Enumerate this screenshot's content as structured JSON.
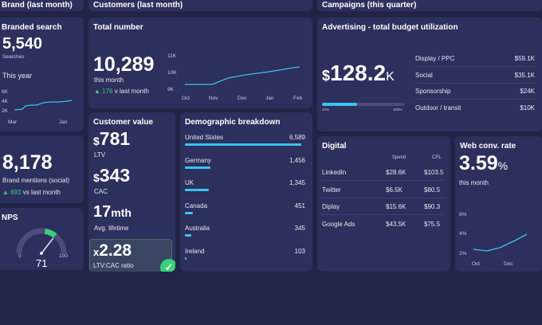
{
  "headers": {
    "brand": "Brand (last month)",
    "customers": "Customers (last month)",
    "campaigns": "Campaigns (this quarter)"
  },
  "branded_search": {
    "title": "Branded search",
    "value": "5,540",
    "label": "Searches",
    "this_year": "This year",
    "y_ticks": [
      "6K",
      "4K",
      "2K"
    ],
    "x_ticks": [
      "Mar",
      "Jan"
    ]
  },
  "brand_mentions": {
    "value": "8,178",
    "label": "Brand mentions (social)",
    "delta": "693",
    "delta_label": "vs last month"
  },
  "nps": {
    "title": "NPS",
    "value": "71",
    "min": "0",
    "max": "100",
    "level_pct": 71
  },
  "total_number": {
    "title": "Total number",
    "value": "10,289",
    "label": "this month",
    "delta": "176",
    "delta_label": "v last month",
    "y_ticks": [
      "11K",
      "10K",
      "9K"
    ],
    "x_ticks": [
      "Oct",
      "Nov",
      "Dec",
      "Jan",
      "Feb"
    ]
  },
  "customer_value": {
    "title": "Customer value",
    "ltv_prefix": "$",
    "ltv_value": "781",
    "ltv_label": "LTV",
    "cac_prefix": "$",
    "cac_value": "343",
    "cac_label": "CAC",
    "lifetime_value": "17",
    "lifetime_unit": "mth",
    "lifetime_label": "Avg. lifetime",
    "ratio_prefix": "x",
    "ratio_value": "2.28",
    "ratio_label": "LTV:CAC ratio"
  },
  "demographic": {
    "title": "Demographic breakdown",
    "rows": [
      {
        "country": "United States",
        "value": "6,589",
        "num": 6589
      },
      {
        "country": "Germany",
        "value": "1,456",
        "num": 1456
      },
      {
        "country": "UK",
        "value": "1,345",
        "num": 1345
      },
      {
        "country": "Canada",
        "value": "451",
        "num": 451
      },
      {
        "country": "Australia",
        "value": "345",
        "num": 345
      },
      {
        "country": "Ireland",
        "value": "103",
        "num": 103
      }
    ]
  },
  "advertising": {
    "title": "Advertising - total budget utilization",
    "currency": "$",
    "value": "128.2",
    "unit": "K",
    "progress_left": "42%",
    "progress_right": "100%",
    "progress_pct": 42,
    "rows": [
      {
        "label": "Display / PPC",
        "value": "$59.1K"
      },
      {
        "label": "Social",
        "value": "$35.1K"
      },
      {
        "label": "Sponsorship",
        "value": "$24K"
      },
      {
        "label": "Outdoor / transit",
        "value": "$10K"
      }
    ]
  },
  "digital": {
    "title": "Digital",
    "col_spend": "Spend",
    "col_cpl": "CPL",
    "rows": [
      {
        "name": "LinkedIn",
        "spend": "$28.6K",
        "cpl": "$103.5"
      },
      {
        "name": "Twitter",
        "spend": "$6.5K",
        "cpl": "$80.5"
      },
      {
        "name": "Diplay",
        "spend": "$15.6K",
        "cpl": "$90.3"
      },
      {
        "name": "Google Ads",
        "spend": "$43.5K",
        "cpl": "$75.5"
      }
    ]
  },
  "web_conv": {
    "title": "Web conv. rate",
    "value": "3.59",
    "unit": "%",
    "label": "this month",
    "y_ticks": [
      "6%",
      "4%",
      "2%"
    ],
    "x_ticks": [
      "Oct",
      "Dec"
    ]
  },
  "colors": {
    "accent": "#3cc3f0",
    "positive": "#39d17a",
    "card": "#2d2f5c",
    "background": "#222447"
  }
}
